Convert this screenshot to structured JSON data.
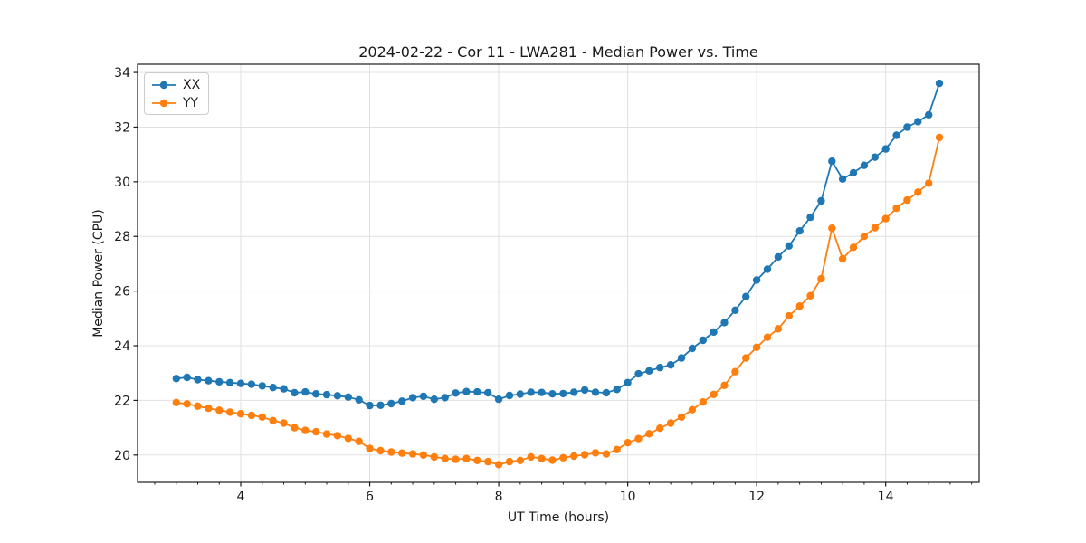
{
  "chart_data": {
    "type": "line",
    "title": "2024-02-22 - Cor 11 - LWA281 - Median Power vs. Time",
    "xlabel": "UT Time (hours)",
    "ylabel": "Median Power (CPU)",
    "xlim": [
      2.4,
      15.45
    ],
    "ylim": [
      19.0,
      34.3
    ],
    "x_major_ticks": [
      4,
      6,
      8,
      10,
      12,
      14
    ],
    "x_minor_step": 0.33333,
    "y_major_ticks": [
      20,
      22,
      24,
      26,
      28,
      30,
      32,
      34
    ],
    "grid": true,
    "grid_color": "#e0e0e0",
    "axis_color": "#1a1a1a",
    "legend_position": "upper-left",
    "marker": "circle",
    "x": [
      3.0,
      3.167,
      3.333,
      3.5,
      3.667,
      3.833,
      4.0,
      4.167,
      4.333,
      4.5,
      4.667,
      4.833,
      5.0,
      5.167,
      5.333,
      5.5,
      5.667,
      5.833,
      6.0,
      6.167,
      6.333,
      6.5,
      6.667,
      6.833,
      7.0,
      7.167,
      7.333,
      7.5,
      7.667,
      7.833,
      8.0,
      8.167,
      8.333,
      8.5,
      8.667,
      8.833,
      9.0,
      9.167,
      9.333,
      9.5,
      9.667,
      9.833,
      10.0,
      10.167,
      10.333,
      10.5,
      10.667,
      10.833,
      11.0,
      11.167,
      11.333,
      11.5,
      11.667,
      11.833,
      12.0,
      12.167,
      12.333,
      12.5,
      12.667,
      12.833,
      13.0,
      13.167,
      13.333,
      13.5,
      13.667,
      13.833,
      14.0,
      14.167,
      14.333,
      14.5,
      14.667,
      14.833
    ],
    "series": [
      {
        "name": "XX",
        "color": "#1f77b4",
        "values": [
          22.8,
          22.84,
          22.76,
          22.72,
          22.68,
          22.65,
          22.62,
          22.59,
          22.53,
          22.47,
          22.42,
          22.28,
          22.31,
          22.24,
          22.21,
          22.17,
          22.12,
          22.02,
          21.81,
          21.82,
          21.88,
          21.97,
          22.1,
          22.15,
          22.04,
          22.1,
          22.27,
          22.32,
          22.31,
          22.28,
          22.04,
          22.18,
          22.23,
          22.3,
          22.29,
          22.24,
          22.25,
          22.3,
          22.38,
          22.3,
          22.28,
          22.4,
          22.65,
          22.97,
          23.08,
          23.2,
          23.3,
          23.55,
          23.9,
          24.2,
          24.5,
          24.85,
          25.3,
          25.8,
          26.4,
          26.8,
          27.25,
          27.65,
          28.2,
          28.7,
          29.3,
          30.75,
          30.1,
          30.33,
          30.6,
          30.9,
          31.2,
          31.7,
          32.0,
          32.2,
          32.45,
          33.6
        ]
      },
      {
        "name": "YY",
        "color": "#ff7f0e",
        "values": [
          21.92,
          21.87,
          21.79,
          21.71,
          21.64,
          21.57,
          21.51,
          21.45,
          21.39,
          21.26,
          21.17,
          21.0,
          20.9,
          20.85,
          20.77,
          20.71,
          20.61,
          20.5,
          20.24,
          20.16,
          20.11,
          20.07,
          20.04,
          20.0,
          19.93,
          19.87,
          19.84,
          19.87,
          19.8,
          19.76,
          19.65,
          19.76,
          19.8,
          19.93,
          19.87,
          19.81,
          19.9,
          19.96,
          20.01,
          20.08,
          20.04,
          20.2,
          20.45,
          20.6,
          20.78,
          20.98,
          21.17,
          21.39,
          21.66,
          21.94,
          22.22,
          22.55,
          23.05,
          23.55,
          23.94,
          24.31,
          24.62,
          25.09,
          25.45,
          25.83,
          26.45,
          28.3,
          27.18,
          27.6,
          28.0,
          28.32,
          28.65,
          29.03,
          29.33,
          29.62,
          29.95,
          31.62
        ]
      }
    ]
  }
}
